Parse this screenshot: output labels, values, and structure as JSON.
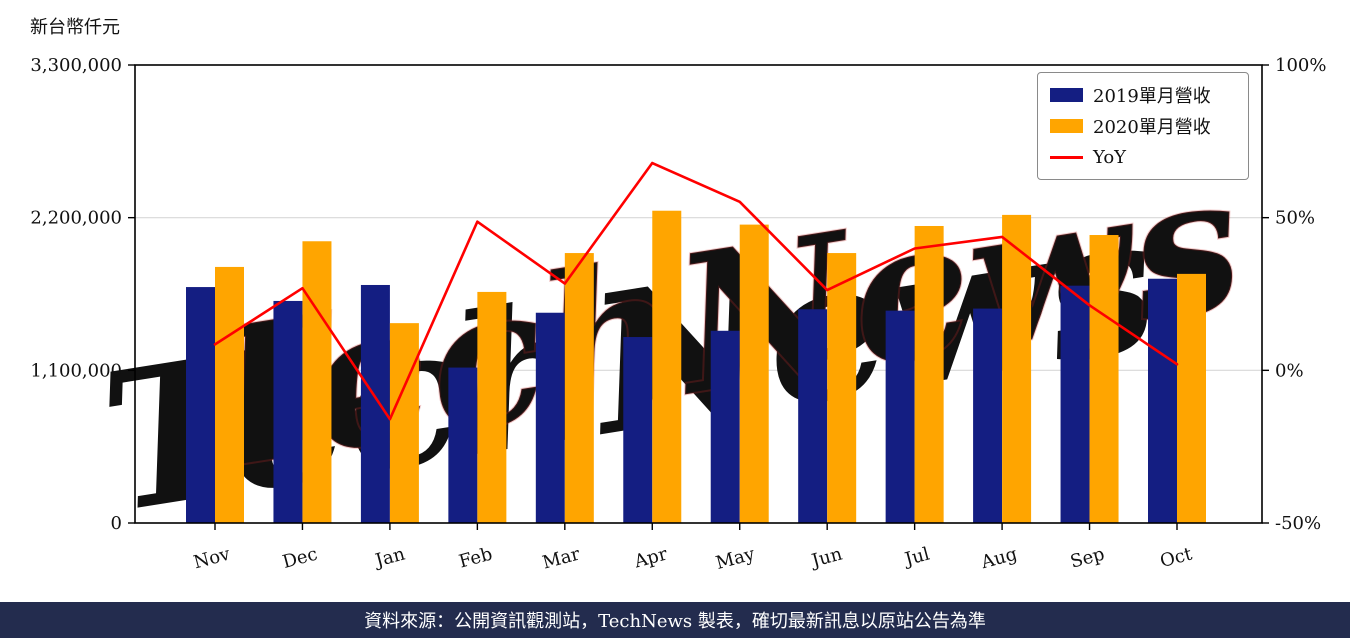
{
  "unit_label": "新台幣仟元",
  "watermark": {
    "text": "TechNews"
  },
  "legend": {
    "items": [
      {
        "label": "2019單月營收",
        "color": "#141e82",
        "marker": "square"
      },
      {
        "label": "2020單月營收",
        "color": "#ffa500",
        "marker": "square"
      },
      {
        "label": "YoY",
        "color": "#ff0000",
        "marker": "line"
      }
    ]
  },
  "footer": {
    "text": "資料來源：公開資訊觀測站，TechNews 製表，確切最新訊息以原站公告為準",
    "bg_color": "#232c4e",
    "text_color": "#ffffff"
  },
  "colors": {
    "grid": "#d8d8d8",
    "axis": "#000000",
    "watermark_pink": "rgba(232,110,105,0.26)",
    "watermark_pink_stroke": "rgba(205,45,45,0.25)",
    "watermark_gray": "rgba(130,130,130,0.20)"
  },
  "chart_data": {
    "type": "bar",
    "title": "",
    "xlabel": "",
    "ylabel": "新台幣仟元",
    "grid": true,
    "legend_position": "top-right",
    "categories": [
      "Nov",
      "Dec",
      "Jan",
      "Feb",
      "Mar",
      "Apr",
      "May",
      "Jun",
      "Jul",
      "Aug",
      "Sep",
      "Oct"
    ],
    "series": [
      {
        "name": "2019單月營收",
        "type": "bar",
        "axis": "left",
        "color": "#141e82",
        "values": [
          1700000,
          1600000,
          1715000,
          1120000,
          1515000,
          1340000,
          1385000,
          1540000,
          1530000,
          1545000,
          1710000,
          1760000
        ]
      },
      {
        "name": "2020單月營收",
        "type": "bar",
        "axis": "left",
        "color": "#ffa500",
        "values": [
          1845000,
          2030000,
          1440000,
          1665000,
          1945000,
          2250000,
          2150000,
          1945000,
          2140000,
          2220000,
          2075000,
          1795000
        ]
      },
      {
        "name": "YoY",
        "type": "line",
        "axis": "right",
        "color": "#ff0000",
        "unit": "%",
        "values": [
          8.5,
          26.9,
          -16.0,
          48.7,
          28.4,
          67.9,
          55.2,
          26.3,
          39.9,
          43.7,
          21.3,
          2.0
        ]
      }
    ],
    "left_axis": {
      "min": 0,
      "max": 3300000,
      "ticks": [
        {
          "v": 0,
          "label": "0"
        },
        {
          "v": 1100000,
          "label": "1,100,000"
        },
        {
          "v": 2200000,
          "label": "2,200,000"
        },
        {
          "v": 3300000,
          "label": "3,300,000"
        }
      ],
      "grid": [
        1100000,
        2200000
      ]
    },
    "right_axis": {
      "min": -50,
      "max": 100,
      "ticks": [
        {
          "v": -50,
          "label": "-50%"
        },
        {
          "v": 0,
          "label": "0%"
        },
        {
          "v": 50,
          "label": "50%"
        },
        {
          "v": 100,
          "label": "100%"
        }
      ]
    }
  }
}
